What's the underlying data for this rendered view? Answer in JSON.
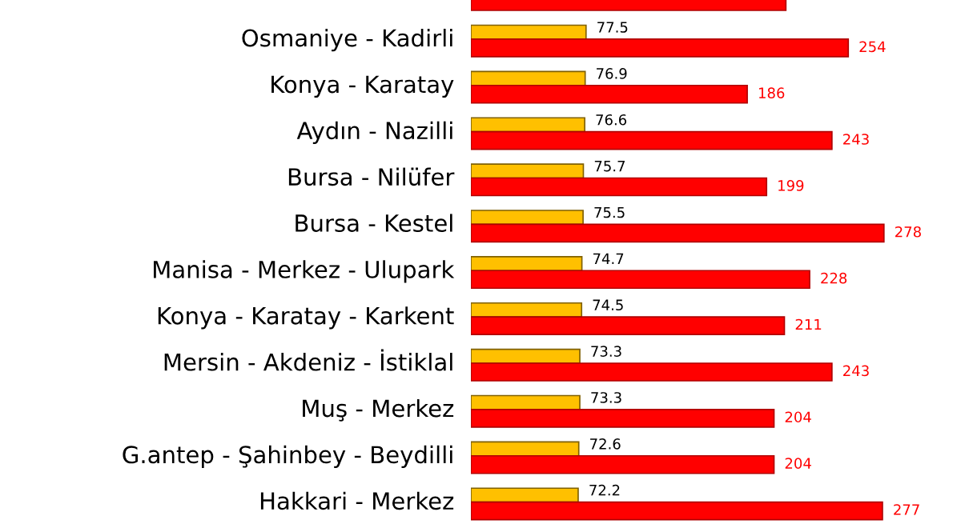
{
  "chart_data": {
    "type": "bar",
    "orientation": "horizontal",
    "categories": [
      null,
      "Osmaniye - Kadirli",
      "Konya - Karatay",
      "Aydın - Nazilli",
      "Bursa - Nilüfer",
      "Bursa - Kestel",
      "Manisa - Merkez - Ulupark",
      "Konya - Karatay - Karkent",
      "Mersin - Akdeniz - İstiklal",
      "Muş - Merkez",
      "G.antep - Şahinbey - Beydilli",
      "Hakkari - Merkez"
    ],
    "series": [
      {
        "color": "#ffc000",
        "values": [
          null,
          77.5,
          76.9,
          76.6,
          75.7,
          75.5,
          74.7,
          74.5,
          73.3,
          73.3,
          72.6,
          72.2
        ],
        "value_labels": [
          null,
          "77.5",
          "76.9",
          "76.6",
          "75.7",
          "75.5",
          "74.7",
          "74.5",
          "73.3",
          "73.3",
          "72.6",
          "72.2"
        ]
      },
      {
        "color": "#ff0000",
        "values": [
          212,
          254,
          186,
          243,
          199,
          278,
          228,
          211,
          243,
          204,
          204,
          277
        ],
        "value_labels": [
          null,
          "254",
          "186",
          "243",
          "199",
          "278",
          "228",
          "211",
          "243",
          "204",
          "204",
          "277"
        ]
      }
    ]
  }
}
